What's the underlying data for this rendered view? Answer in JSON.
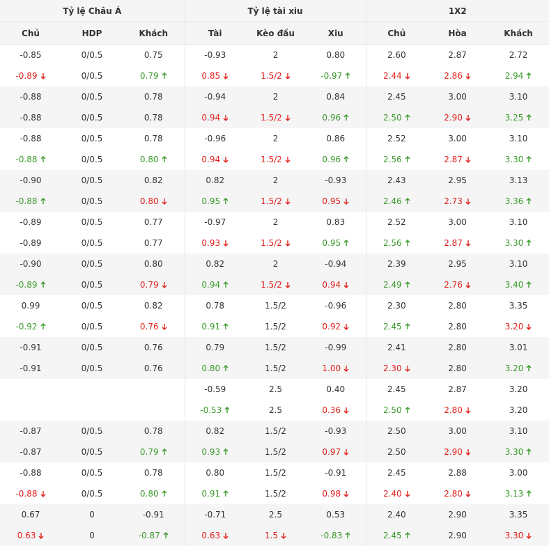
{
  "header": {
    "groups": [
      "Tỷ lệ Châu Á",
      "Tỷ lệ tài xiu",
      "1X2"
    ],
    "columns": [
      "Chủ",
      "HDP",
      "Khách",
      "Tài",
      "Kèo đầu",
      "Xiu",
      "Chủ",
      "Hòa",
      "Khách"
    ]
  },
  "table": {
    "rows": [
      [
        "-0.85",
        "0/0.5",
        "0.75",
        "-0.93",
        "2",
        "0.80",
        "2.60",
        "2.87",
        "2.72"
      ],
      [
        {
          "text": "-0.89",
          "trend": "down"
        },
        "0/0.5",
        {
          "text": "0.79",
          "trend": "up"
        },
        {
          "text": "0.85",
          "trend": "down"
        },
        {
          "text": "1.5/2",
          "trend": "down"
        },
        {
          "text": "-0.97",
          "trend": "up"
        },
        {
          "text": "2.44",
          "trend": "down"
        },
        {
          "text": "2.86",
          "trend": "down"
        },
        {
          "text": "2.94",
          "trend": "up"
        }
      ],
      [
        "-0.88",
        "0/0.5",
        "0.78",
        "-0.94",
        "2",
        "0.84",
        "2.45",
        "3.00",
        "3.10"
      ],
      [
        "-0.88",
        "0/0.5",
        "0.78",
        {
          "text": "0.94",
          "trend": "down"
        },
        {
          "text": "1.5/2",
          "trend": "down"
        },
        {
          "text": "0.96",
          "trend": "up"
        },
        {
          "text": "2.50",
          "trend": "up"
        },
        {
          "text": "2.90",
          "trend": "down"
        },
        {
          "text": "3.25",
          "trend": "up"
        }
      ],
      [
        "-0.88",
        "0/0.5",
        "0.78",
        "-0.96",
        "2",
        "0.86",
        "2.52",
        "3.00",
        "3.10"
      ],
      [
        {
          "text": "-0.88",
          "trend": "up"
        },
        "0/0.5",
        {
          "text": "0.80",
          "trend": "up"
        },
        {
          "text": "0.94",
          "trend": "down"
        },
        {
          "text": "1.5/2",
          "trend": "down"
        },
        {
          "text": "0.96",
          "trend": "up"
        },
        {
          "text": "2.56",
          "trend": "up"
        },
        {
          "text": "2.87",
          "trend": "down"
        },
        {
          "text": "3.30",
          "trend": "up"
        }
      ],
      [
        "-0.90",
        "0/0.5",
        "0.82",
        "0.82",
        "2",
        "-0.93",
        "2.43",
        "2.95",
        "3.13"
      ],
      [
        {
          "text": "-0.88",
          "trend": "up"
        },
        "0/0.5",
        {
          "text": "0.80",
          "trend": "down"
        },
        {
          "text": "0.95",
          "trend": "up"
        },
        {
          "text": "1.5/2",
          "trend": "down"
        },
        {
          "text": "0.95",
          "trend": "down"
        },
        {
          "text": "2.46",
          "trend": "up"
        },
        {
          "text": "2.73",
          "trend": "down"
        },
        {
          "text": "3.36",
          "trend": "up"
        }
      ],
      [
        "-0.89",
        "0/0.5",
        "0.77",
        "-0.97",
        "2",
        "0.83",
        "2.52",
        "3.00",
        "3.10"
      ],
      [
        "-0.89",
        "0/0.5",
        "0.77",
        {
          "text": "0.93",
          "trend": "down"
        },
        {
          "text": "1.5/2",
          "trend": "down"
        },
        {
          "text": "0.95",
          "trend": "up"
        },
        {
          "text": "2.56",
          "trend": "up"
        },
        {
          "text": "2.87",
          "trend": "down"
        },
        {
          "text": "3.30",
          "trend": "up"
        }
      ],
      [
        "-0.90",
        "0/0.5",
        "0.80",
        "0.82",
        "2",
        "-0.94",
        "2.39",
        "2.95",
        "3.10"
      ],
      [
        {
          "text": "-0.89",
          "trend": "up"
        },
        "0/0.5",
        {
          "text": "0.79",
          "trend": "down"
        },
        {
          "text": "0.94",
          "trend": "up"
        },
        {
          "text": "1.5/2",
          "trend": "down"
        },
        {
          "text": "0.94",
          "trend": "down"
        },
        {
          "text": "2.49",
          "trend": "up"
        },
        {
          "text": "2.76",
          "trend": "down"
        },
        {
          "text": "3.40",
          "trend": "up"
        }
      ],
      [
        "0.99",
        "0/0.5",
        "0.82",
        "0.78",
        "1.5/2",
        "-0.96",
        "2.30",
        "2.80",
        "3.35"
      ],
      [
        {
          "text": "-0.92",
          "trend": "up"
        },
        "0/0.5",
        {
          "text": "0.76",
          "trend": "down"
        },
        {
          "text": "0.91",
          "trend": "up"
        },
        "1.5/2",
        {
          "text": "0.92",
          "trend": "down"
        },
        {
          "text": "2.45",
          "trend": "up"
        },
        "2.80",
        {
          "text": "3.20",
          "trend": "down"
        }
      ],
      [
        "-0.91",
        "0/0.5",
        "0.76",
        "0.79",
        "1.5/2",
        "-0.99",
        "2.41",
        "2.80",
        "3.01"
      ],
      [
        "-0.91",
        "0/0.5",
        "0.76",
        {
          "text": "0.80",
          "trend": "up"
        },
        "1.5/2",
        {
          "text": "1.00",
          "trend": "down"
        },
        {
          "text": "2.30",
          "trend": "down"
        },
        "2.80",
        {
          "text": "3.20",
          "trend": "up"
        }
      ],
      [
        null,
        null,
        null,
        "-0.59",
        "2.5",
        "0.40",
        "2.45",
        "2.87",
        "3.20"
      ],
      [
        null,
        null,
        null,
        {
          "text": "-0.53",
          "trend": "up"
        },
        "2.5",
        {
          "text": "0.36",
          "trend": "down"
        },
        {
          "text": "2.50",
          "trend": "up"
        },
        {
          "text": "2.80",
          "trend": "down"
        },
        "3.20"
      ],
      [
        "-0.87",
        "0/0.5",
        "0.78",
        "0.82",
        "1.5/2",
        "-0.93",
        "2.50",
        "3.00",
        "3.10"
      ],
      [
        "-0.87",
        "0/0.5",
        {
          "text": "0.79",
          "trend": "up"
        },
        {
          "text": "0.93",
          "trend": "up"
        },
        "1.5/2",
        {
          "text": "0.97",
          "trend": "down"
        },
        "2.50",
        {
          "text": "2.90",
          "trend": "down"
        },
        {
          "text": "3.30",
          "trend": "up"
        }
      ],
      [
        "-0.88",
        "0/0.5",
        "0.78",
        "0.80",
        "1.5/2",
        "-0.91",
        "2.45",
        "2.88",
        "3.00"
      ],
      [
        {
          "text": "-0.88",
          "trend": "down"
        },
        "0/0.5",
        {
          "text": "0.80",
          "trend": "up"
        },
        {
          "text": "0.91",
          "trend": "up"
        },
        "1.5/2",
        {
          "text": "0.98",
          "trend": "down"
        },
        {
          "text": "2.40",
          "trend": "down"
        },
        {
          "text": "2.80",
          "trend": "down"
        },
        {
          "text": "3.13",
          "trend": "up"
        }
      ],
      [
        "0.67",
        "0",
        "-0.91",
        "-0.71",
        "2.5",
        "0.53",
        "2.40",
        "2.90",
        "3.35"
      ],
      [
        {
          "text": "0.63",
          "trend": "down"
        },
        "0",
        {
          "text": "-0.87",
          "trend": "up"
        },
        {
          "text": "0.63",
          "trend": "down"
        },
        {
          "text": "1.5",
          "trend": "down"
        },
        {
          "text": "-0.83",
          "trend": "up"
        },
        {
          "text": "2.45",
          "trend": "up"
        },
        "2.90",
        {
          "text": "3.30",
          "trend": "down"
        }
      ]
    ]
  }
}
